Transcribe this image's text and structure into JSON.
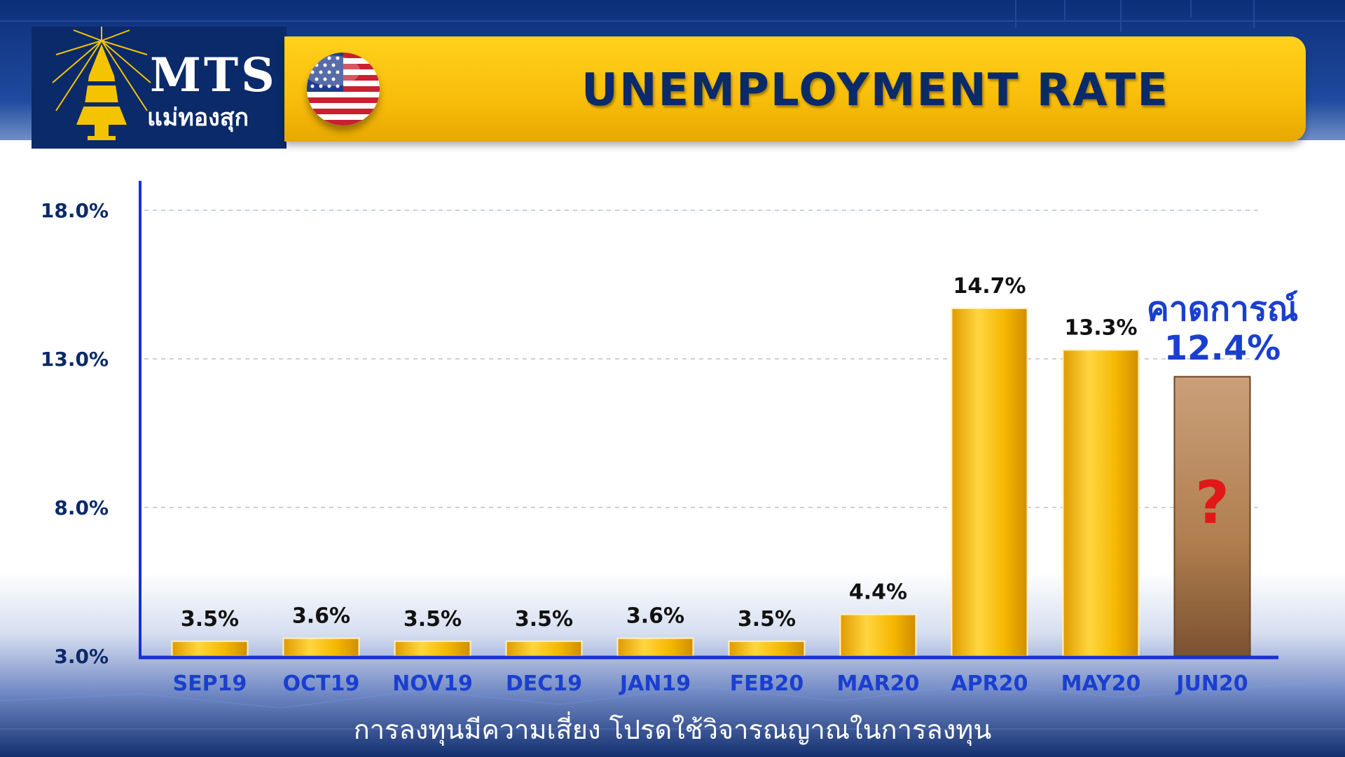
{
  "header": {
    "logo_text": "MTS",
    "logo_subtext": "แม่ทองสุก",
    "title": "UNEMPLOYMENT RATE"
  },
  "forecast": {
    "label": "คาดการณ์",
    "value": "12.4%",
    "unknown_mark": "?"
  },
  "disclaimer": "การลงทุนมีความเสี่ยง โปรดใช้วิจารณญาณในการลงทุน",
  "colors": {
    "bar": "#f5b700",
    "forecast_bar": "#b07d4e",
    "axis": "#1a2fd0",
    "title_bar": "#f8bd0a",
    "label_blue": "#1a3fd0"
  },
  "chart_data": {
    "type": "bar",
    "title": "UNEMPLOYMENT RATE",
    "categories": [
      "SEP19",
      "OCT19",
      "NOV19",
      "DEC19",
      "JAN19",
      "FEB20",
      "MAR20",
      "APR20",
      "MAY20",
      "JUN20"
    ],
    "values": [
      3.5,
      3.6,
      3.5,
      3.5,
      3.6,
      3.5,
      4.4,
      14.7,
      13.3,
      12.4
    ],
    "value_labels": [
      "3.5%",
      "3.6%",
      "3.5%",
      "3.5%",
      "3.6%",
      "3.5%",
      "4.4%",
      "14.7%",
      "13.3%",
      ""
    ],
    "forecast_index": 9,
    "yticks": [
      3.0,
      8.0,
      13.0,
      18.0
    ],
    "ytick_labels": [
      "3.0%",
      "8.0%",
      "13.0%",
      "18.0%"
    ],
    "ylim": [
      3.0,
      18.0
    ],
    "grid": true,
    "xlabel": "",
    "ylabel": ""
  }
}
